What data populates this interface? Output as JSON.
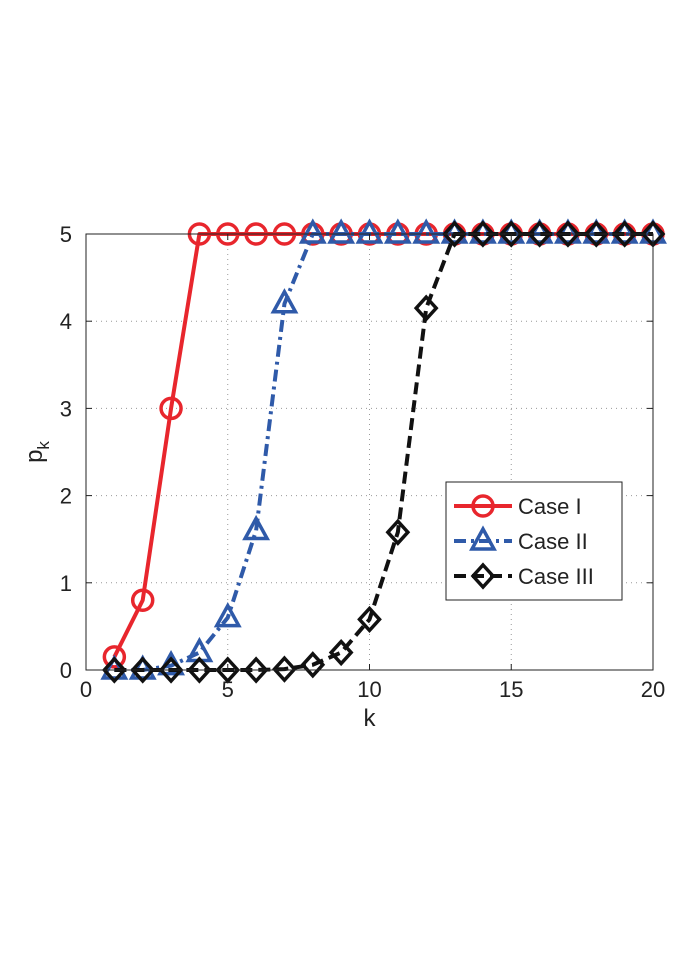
{
  "chart_data": {
    "type": "line",
    "title": "",
    "xlabel": "k",
    "ylabel": "p_k",
    "xlim": [
      0,
      20
    ],
    "ylim": [
      0,
      5
    ],
    "xticks": [
      0,
      5,
      10,
      15,
      20
    ],
    "yticks": [
      0,
      1,
      2,
      3,
      4,
      5
    ],
    "grid": true,
    "legend_position": "center-right",
    "x": [
      1,
      2,
      3,
      4,
      5,
      6,
      7,
      8,
      9,
      10,
      11,
      12,
      13,
      14,
      15,
      16,
      17,
      18,
      19,
      20
    ],
    "series": [
      {
        "name": "Case I",
        "color": "#e8262d",
        "line_style": "solid",
        "marker": "circle",
        "values": [
          0.15,
          0.8,
          3.0,
          5.0,
          5.0,
          5.0,
          5.0,
          5.0,
          5.0,
          5.0,
          5.0,
          5.0,
          5.0,
          5.0,
          5.0,
          5.0,
          5.0,
          5.0,
          5.0,
          5.0
        ]
      },
      {
        "name": "Case II",
        "color": "#2f5aa9",
        "line_style": "dash-dot",
        "marker": "triangle",
        "values": [
          0.0,
          0.0,
          0.05,
          0.2,
          0.6,
          1.6,
          4.2,
          5.0,
          5.0,
          5.0,
          5.0,
          5.0,
          5.0,
          5.0,
          5.0,
          5.0,
          5.0,
          5.0,
          5.0,
          5.0
        ]
      },
      {
        "name": "Case III",
        "color": "#111111",
        "line_style": "dashed",
        "marker": "diamond",
        "values": [
          0.0,
          0.0,
          0.0,
          0.0,
          0.0,
          0.0,
          0.01,
          0.06,
          0.2,
          0.58,
          1.58,
          4.15,
          5.0,
          5.0,
          5.0,
          5.0,
          5.0,
          5.0,
          5.0,
          5.0
        ]
      }
    ]
  }
}
